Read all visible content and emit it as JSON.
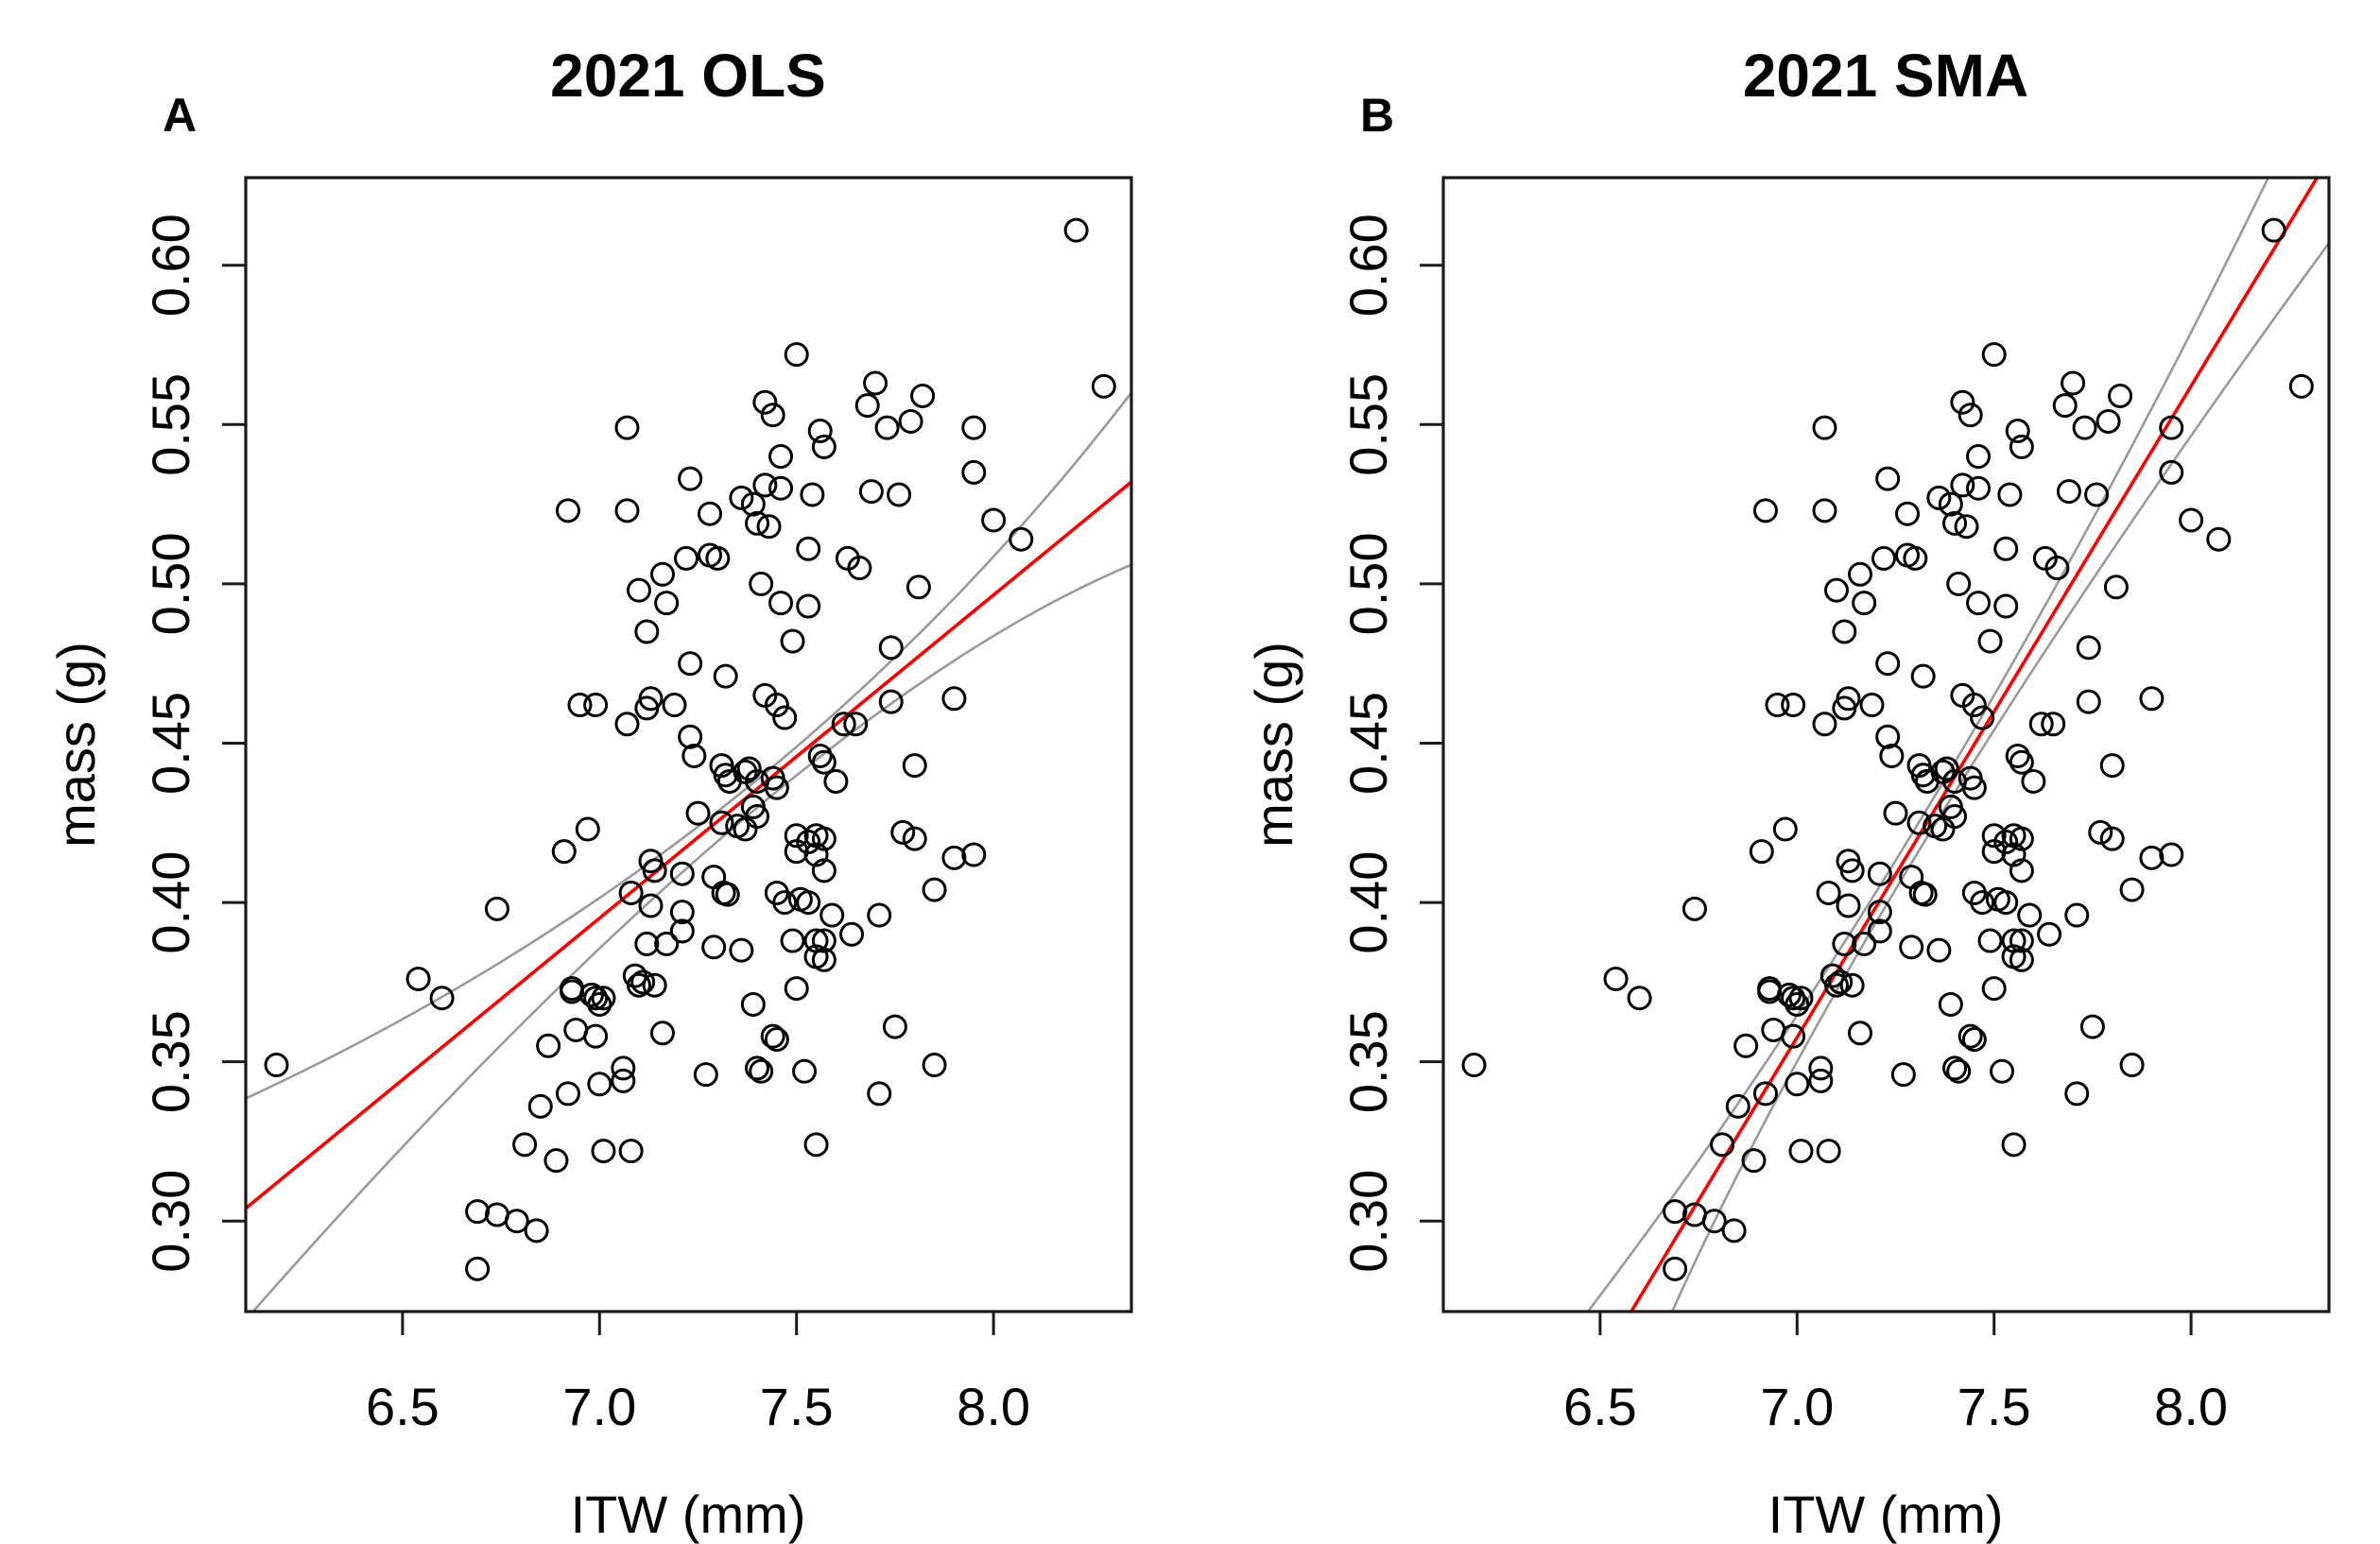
{
  "figure": {
    "background": "#ffffff",
    "point_color": "#000000",
    "box_color": "#1a1a1a",
    "fit_color": "#ff0000",
    "band_color": "#9a9a9a"
  },
  "chart_data": [
    {
      "type": "scatter",
      "panel_label": "A",
      "title": "2021 OLS",
      "xlabel": "ITW (mm)",
      "ylabel": "mass (g)",
      "xlim": [
        6.102,
        8.35
      ],
      "ylim": [
        0.2716,
        0.6275
      ],
      "x_tick_values": [
        6.5,
        7.0,
        7.5,
        8.0
      ],
      "x_tick_labels": [
        "6.5",
        "7.0",
        "7.5",
        "8.0"
      ],
      "y_tick_values": [
        0.3,
        0.35,
        0.4,
        0.45,
        0.5,
        0.55,
        0.6
      ],
      "y_tick_labels": [
        "0.30",
        "0.35",
        "0.40",
        "0.45",
        "0.50",
        "0.55",
        "0.60"
      ],
      "grid": false,
      "legend": null,
      "fit_line": {
        "name": "OLS regression line",
        "color": "#ff0000",
        "x1": 6.102,
        "y1": 0.304,
        "x2": 8.35,
        "y2": 0.532
      },
      "ci_band_upper": [
        [
          6.102,
          0.3385
        ],
        [
          7.34,
          0.4325
        ],
        [
          8.35,
          0.56
        ]
      ],
      "ci_band_lower": [
        [
          6.102,
          0.269
        ],
        [
          7.34,
          0.4235
        ],
        [
          8.35,
          0.506
        ]
      ],
      "points": "shared_points"
    },
    {
      "type": "scatter",
      "panel_label": "B",
      "title": "2021 SMA",
      "xlabel": "ITW (mm)",
      "ylabel": "mass (g)",
      "xlim": [
        6.102,
        8.35
      ],
      "ylim": [
        0.2716,
        0.6275
      ],
      "x_tick_values": [
        6.5,
        7.0,
        7.5,
        8.0
      ],
      "x_tick_labels": [
        "6.5",
        "7.0",
        "7.5",
        "8.0"
      ],
      "y_tick_values": [
        0.3,
        0.35,
        0.4,
        0.45,
        0.5,
        0.55,
        0.6
      ],
      "y_tick_labels": [
        "0.30",
        "0.35",
        "0.40",
        "0.45",
        "0.50",
        "0.55",
        "0.60"
      ],
      "grid": false,
      "legend": null,
      "fit_line": {
        "name": "SMA regression line",
        "color": "#ff0000",
        "x1": 6.579,
        "y1": 0.2716,
        "x2": 8.32,
        "y2": 0.6275
      },
      "ci_band_upper": [
        [
          6.469,
          0.2716
        ],
        [
          7.35,
          0.4335
        ],
        [
          8.196,
          0.6275
        ]
      ],
      "ci_band_lower": [
        [
          6.683,
          0.2716
        ],
        [
          7.35,
          0.4245
        ],
        [
          8.35,
          0.607
        ]
      ],
      "points": "shared_points"
    }
  ],
  "shared_points": [
    [
      6.18,
      0.349
    ],
    [
      6.54,
      0.376
    ],
    [
      6.6,
      0.37
    ],
    [
      6.69,
      0.285
    ],
    [
      6.69,
      0.303
    ],
    [
      6.74,
      0.302
    ],
    [
      6.79,
      0.3
    ],
    [
      6.84,
      0.297
    ],
    [
      6.81,
      0.324
    ],
    [
      6.89,
      0.319
    ],
    [
      6.85,
      0.336
    ],
    [
      6.87,
      0.355
    ],
    [
      6.92,
      0.34
    ],
    [
      6.93,
      0.373
    ],
    [
      6.94,
      0.36
    ],
    [
      6.99,
      0.358
    ],
    [
      6.99,
      0.37
    ],
    [
      7.0,
      0.368
    ],
    [
      7.0,
      0.343
    ],
    [
      7.01,
      0.322
    ],
    [
      7.08,
      0.322
    ],
    [
      7.06,
      0.348
    ],
    [
      7.06,
      0.344
    ],
    [
      7.09,
      0.377
    ],
    [
      7.1,
      0.374
    ],
    [
      7.16,
      0.359
    ],
    [
      6.74,
      0.398
    ],
    [
      6.91,
      0.416
    ],
    [
      6.97,
      0.423
    ],
    [
      7.13,
      0.413
    ],
    [
      7.14,
      0.41
    ],
    [
      7.08,
      0.403
    ],
    [
      7.13,
      0.399
    ],
    [
      7.21,
      0.397
    ],
    [
      7.21,
      0.391
    ],
    [
      7.17,
      0.387
    ],
    [
      7.12,
      0.387
    ],
    [
      7.11,
      0.375
    ],
    [
      7.14,
      0.374
    ],
    [
      6.93,
      0.372
    ],
    [
      6.98,
      0.371
    ],
    [
      7.01,
      0.37
    ],
    [
      7.07,
      0.549
    ],
    [
      7.23,
      0.533
    ],
    [
      6.92,
      0.523
    ],
    [
      7.07,
      0.523
    ],
    [
      7.22,
      0.508
    ],
    [
      7.16,
      0.503
    ],
    [
      7.1,
      0.498
    ],
    [
      7.17,
      0.494
    ],
    [
      7.12,
      0.485
    ],
    [
      7.23,
      0.475
    ],
    [
      6.95,
      0.462
    ],
    [
      6.99,
      0.462
    ],
    [
      7.13,
      0.464
    ],
    [
      7.12,
      0.461
    ],
    [
      7.19,
      0.462
    ],
    [
      7.07,
      0.456
    ],
    [
      7.23,
      0.452
    ],
    [
      7.24,
      0.446
    ],
    [
      8.21,
      0.611
    ],
    [
      8.28,
      0.562
    ],
    [
      7.5,
      0.572
    ],
    [
      7.7,
      0.563
    ],
    [
      7.68,
      0.556
    ],
    [
      7.82,
      0.559
    ],
    [
      7.42,
      0.557
    ],
    [
      7.44,
      0.553
    ],
    [
      7.56,
      0.548
    ],
    [
      7.73,
      0.549
    ],
    [
      7.79,
      0.551
    ],
    [
      7.95,
      0.549
    ],
    [
      7.57,
      0.543
    ],
    [
      7.46,
      0.54
    ],
    [
      7.95,
      0.535
    ],
    [
      7.42,
      0.531
    ],
    [
      7.46,
      0.53
    ],
    [
      7.54,
      0.528
    ],
    [
      7.36,
      0.527
    ],
    [
      7.39,
      0.525
    ],
    [
      7.4,
      0.519
    ],
    [
      7.43,
      0.518
    ],
    [
      7.28,
      0.522
    ],
    [
      7.28,
      0.509
    ],
    [
      7.3,
      0.508
    ],
    [
      7.53,
      0.511
    ],
    [
      7.63,
      0.508
    ],
    [
      7.66,
      0.505
    ],
    [
      7.41,
      0.5
    ],
    [
      8.0,
      0.52
    ],
    [
      8.07,
      0.514
    ],
    [
      7.69,
      0.529
    ],
    [
      7.76,
      0.528
    ],
    [
      7.81,
      0.499
    ],
    [
      7.46,
      0.494
    ],
    [
      7.53,
      0.493
    ],
    [
      7.49,
      0.482
    ],
    [
      7.74,
      0.48
    ],
    [
      7.32,
      0.471
    ],
    [
      7.62,
      0.456
    ],
    [
      7.65,
      0.456
    ],
    [
      7.9,
      0.464
    ],
    [
      7.74,
      0.463
    ],
    [
      7.42,
      0.465
    ],
    [
      7.45,
      0.462
    ],
    [
      7.47,
      0.458
    ],
    [
      7.31,
      0.443
    ],
    [
      7.32,
      0.44
    ],
    [
      7.33,
      0.438
    ],
    [
      7.38,
      0.442
    ],
    [
      7.37,
      0.441
    ],
    [
      7.4,
      0.438
    ],
    [
      7.39,
      0.43
    ],
    [
      7.4,
      0.427
    ],
    [
      7.44,
      0.439
    ],
    [
      7.45,
      0.436
    ],
    [
      7.35,
      0.424
    ],
    [
      7.37,
      0.423
    ],
    [
      7.56,
      0.446
    ],
    [
      7.57,
      0.444
    ],
    [
      7.6,
      0.438
    ],
    [
      7.8,
      0.443
    ],
    [
      7.5,
      0.421
    ],
    [
      7.55,
      0.421
    ],
    [
      7.53,
      0.419
    ],
    [
      7.5,
      0.416
    ],
    [
      7.55,
      0.415
    ],
    [
      7.57,
      0.42
    ],
    [
      7.57,
      0.41
    ],
    [
      7.25,
      0.428
    ],
    [
      7.31,
      0.425
    ],
    [
      7.21,
      0.409
    ],
    [
      7.29,
      0.408
    ],
    [
      7.315,
      0.403
    ],
    [
      7.325,
      0.4025
    ],
    [
      7.29,
      0.386
    ],
    [
      7.36,
      0.385
    ],
    [
      7.45,
      0.403
    ],
    [
      7.47,
      0.4
    ],
    [
      7.51,
      0.401
    ],
    [
      7.53,
      0.4
    ],
    [
      7.59,
      0.396
    ],
    [
      7.49,
      0.388
    ],
    [
      7.55,
      0.388
    ],
    [
      7.57,
      0.388
    ],
    [
      7.64,
      0.39
    ],
    [
      7.55,
      0.383
    ],
    [
      7.57,
      0.382
    ],
    [
      7.71,
      0.396
    ],
    [
      7.77,
      0.422
    ],
    [
      7.8,
      0.42
    ],
    [
      7.9,
      0.414
    ],
    [
      7.95,
      0.415
    ],
    [
      7.85,
      0.404
    ],
    [
      7.5,
      0.373
    ],
    [
      7.39,
      0.368
    ],
    [
      7.44,
      0.358
    ],
    [
      7.45,
      0.357
    ],
    [
      7.4,
      0.348
    ],
    [
      7.41,
      0.347
    ],
    [
      7.52,
      0.347
    ],
    [
      7.27,
      0.346
    ],
    [
      7.71,
      0.34
    ],
    [
      7.75,
      0.361
    ],
    [
      7.85,
      0.349
    ],
    [
      7.55,
      0.324
    ]
  ]
}
